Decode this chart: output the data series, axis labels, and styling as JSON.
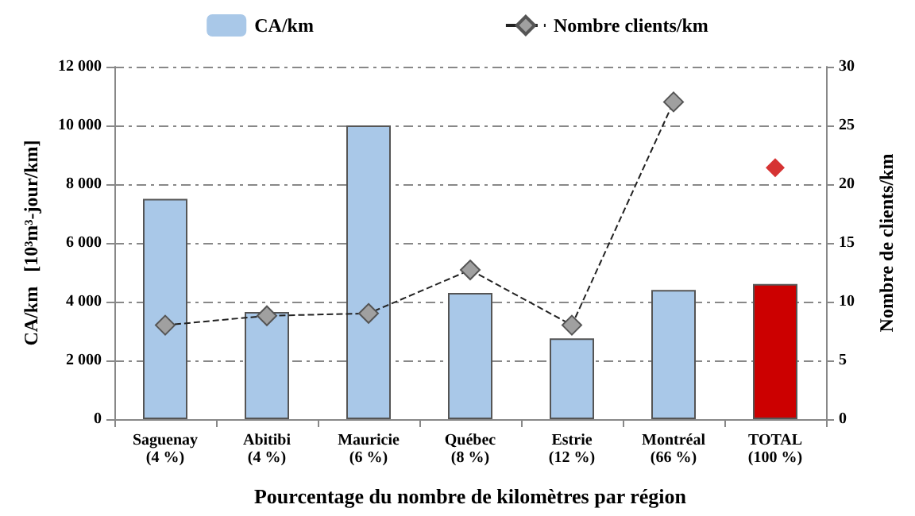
{
  "chart_data": {
    "type": "bar",
    "xlabel": "Pourcentage du nombre de kilomètres par région",
    "ylabel": "CA/km   [10³m³-jour/km]",
    "y2label": "Nombre de clients/km",
    "categories": [
      "Saguenay\n(4 %)",
      "Abitibi\n(4 %)",
      "Mauricie\n(6 %)",
      "Québec\n(8 %)",
      "Estrie\n(12 %)",
      "Montréal\n(66 %)",
      "TOTAL\n(100 %)"
    ],
    "series": [
      {
        "name": "CA/km",
        "color": "#a9c8e8",
        "colors": [
          "#a9c8e8",
          "#a9c8e8",
          "#a9c8e8",
          "#a9c8e8",
          "#a9c8e8",
          "#a9c8e8",
          "#cc0000"
        ],
        "values": [
          7500,
          3650,
          10000,
          4300,
          2750,
          4400,
          4600
        ]
      },
      {
        "name": "Nombre clients/km",
        "type": "line",
        "axis": "y2",
        "color": "#a0a0a0",
        "marker": "diamond",
        "line_style": "dashed",
        "values": [
          8.0,
          8.8,
          9.0,
          12.7,
          8.0,
          27.0,
          null
        ]
      },
      {
        "type": "scatter",
        "axis": "y2",
        "color": "#cc0000",
        "marker": "diamond",
        "values": [
          null,
          null,
          null,
          null,
          null,
          null,
          21.4
        ]
      }
    ],
    "ylim": [
      0,
      12000
    ],
    "yticks": [
      {
        "value": 0,
        "label": "0"
      },
      {
        "value": 2000,
        "label": "2 000"
      },
      {
        "value": 4000,
        "label": "4 000"
      },
      {
        "value": 6000,
        "label": "6 000"
      },
      {
        "value": 8000,
        "label": "8 000"
      },
      {
        "value": 10000,
        "label": "10 000"
      },
      {
        "value": 12000,
        "label": "12 000"
      }
    ],
    "y2lim": [
      0,
      30
    ],
    "y2ticks": [
      0,
      5,
      10,
      15,
      20,
      25,
      30
    ],
    "grid": "y",
    "legend": "top"
  }
}
